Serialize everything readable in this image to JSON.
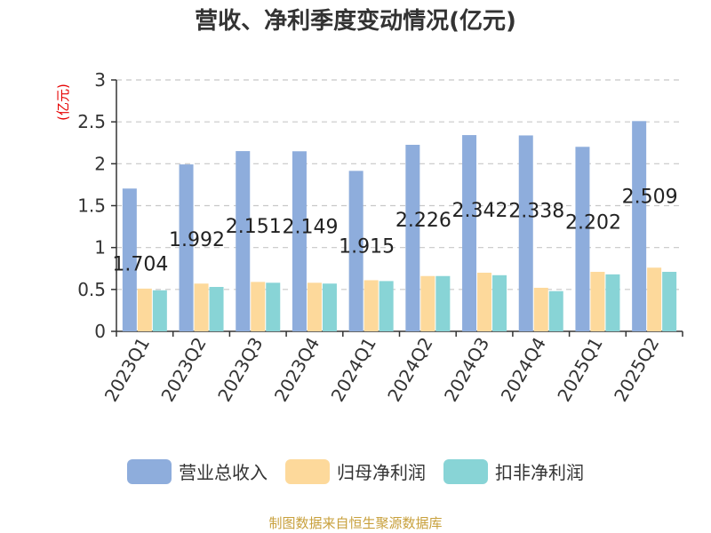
{
  "colors": {
    "series": [
      "#8eaddc",
      "#fdd99b",
      "#88d4d6"
    ],
    "unit_label": "#e60000",
    "source_note": "#c8a03c",
    "text": "#333333"
  },
  "chart_data": {
    "type": "bar",
    "title": "营收、净利季度变动情况(亿元)",
    "unit_label": "(亿元)",
    "categories": [
      "2023Q1",
      "2023Q2",
      "2023Q3",
      "2023Q4",
      "2024Q1",
      "2024Q2",
      "2024Q3",
      "2024Q4",
      "2025Q1",
      "2025Q2"
    ],
    "series": [
      {
        "name": "营业总收入",
        "values": [
          1.704,
          1.992,
          2.151,
          2.149,
          1.915,
          2.226,
          2.342,
          2.338,
          2.202,
          2.509
        ]
      },
      {
        "name": "归母净利润",
        "values": [
          0.51,
          0.57,
          0.59,
          0.58,
          0.61,
          0.66,
          0.7,
          0.52,
          0.71,
          0.76
        ]
      },
      {
        "name": "扣非净利润",
        "values": [
          0.49,
          0.53,
          0.58,
          0.57,
          0.6,
          0.66,
          0.67,
          0.48,
          0.68,
          0.71
        ]
      }
    ],
    "data_labels": [
      "1.704",
      "1.992",
      "2.151",
      "2.149",
      "1.915",
      "2.226",
      "2.342",
      "2.338",
      "2.202",
      "2.509"
    ],
    "yticks": [
      "0",
      "0.5",
      "1",
      "1.5",
      "2",
      "2.5",
      "3"
    ],
    "ylim": [
      0,
      3
    ],
    "grid": true,
    "legend": "bottom"
  },
  "source_note": "制图数据来自恒生聚源数据库"
}
